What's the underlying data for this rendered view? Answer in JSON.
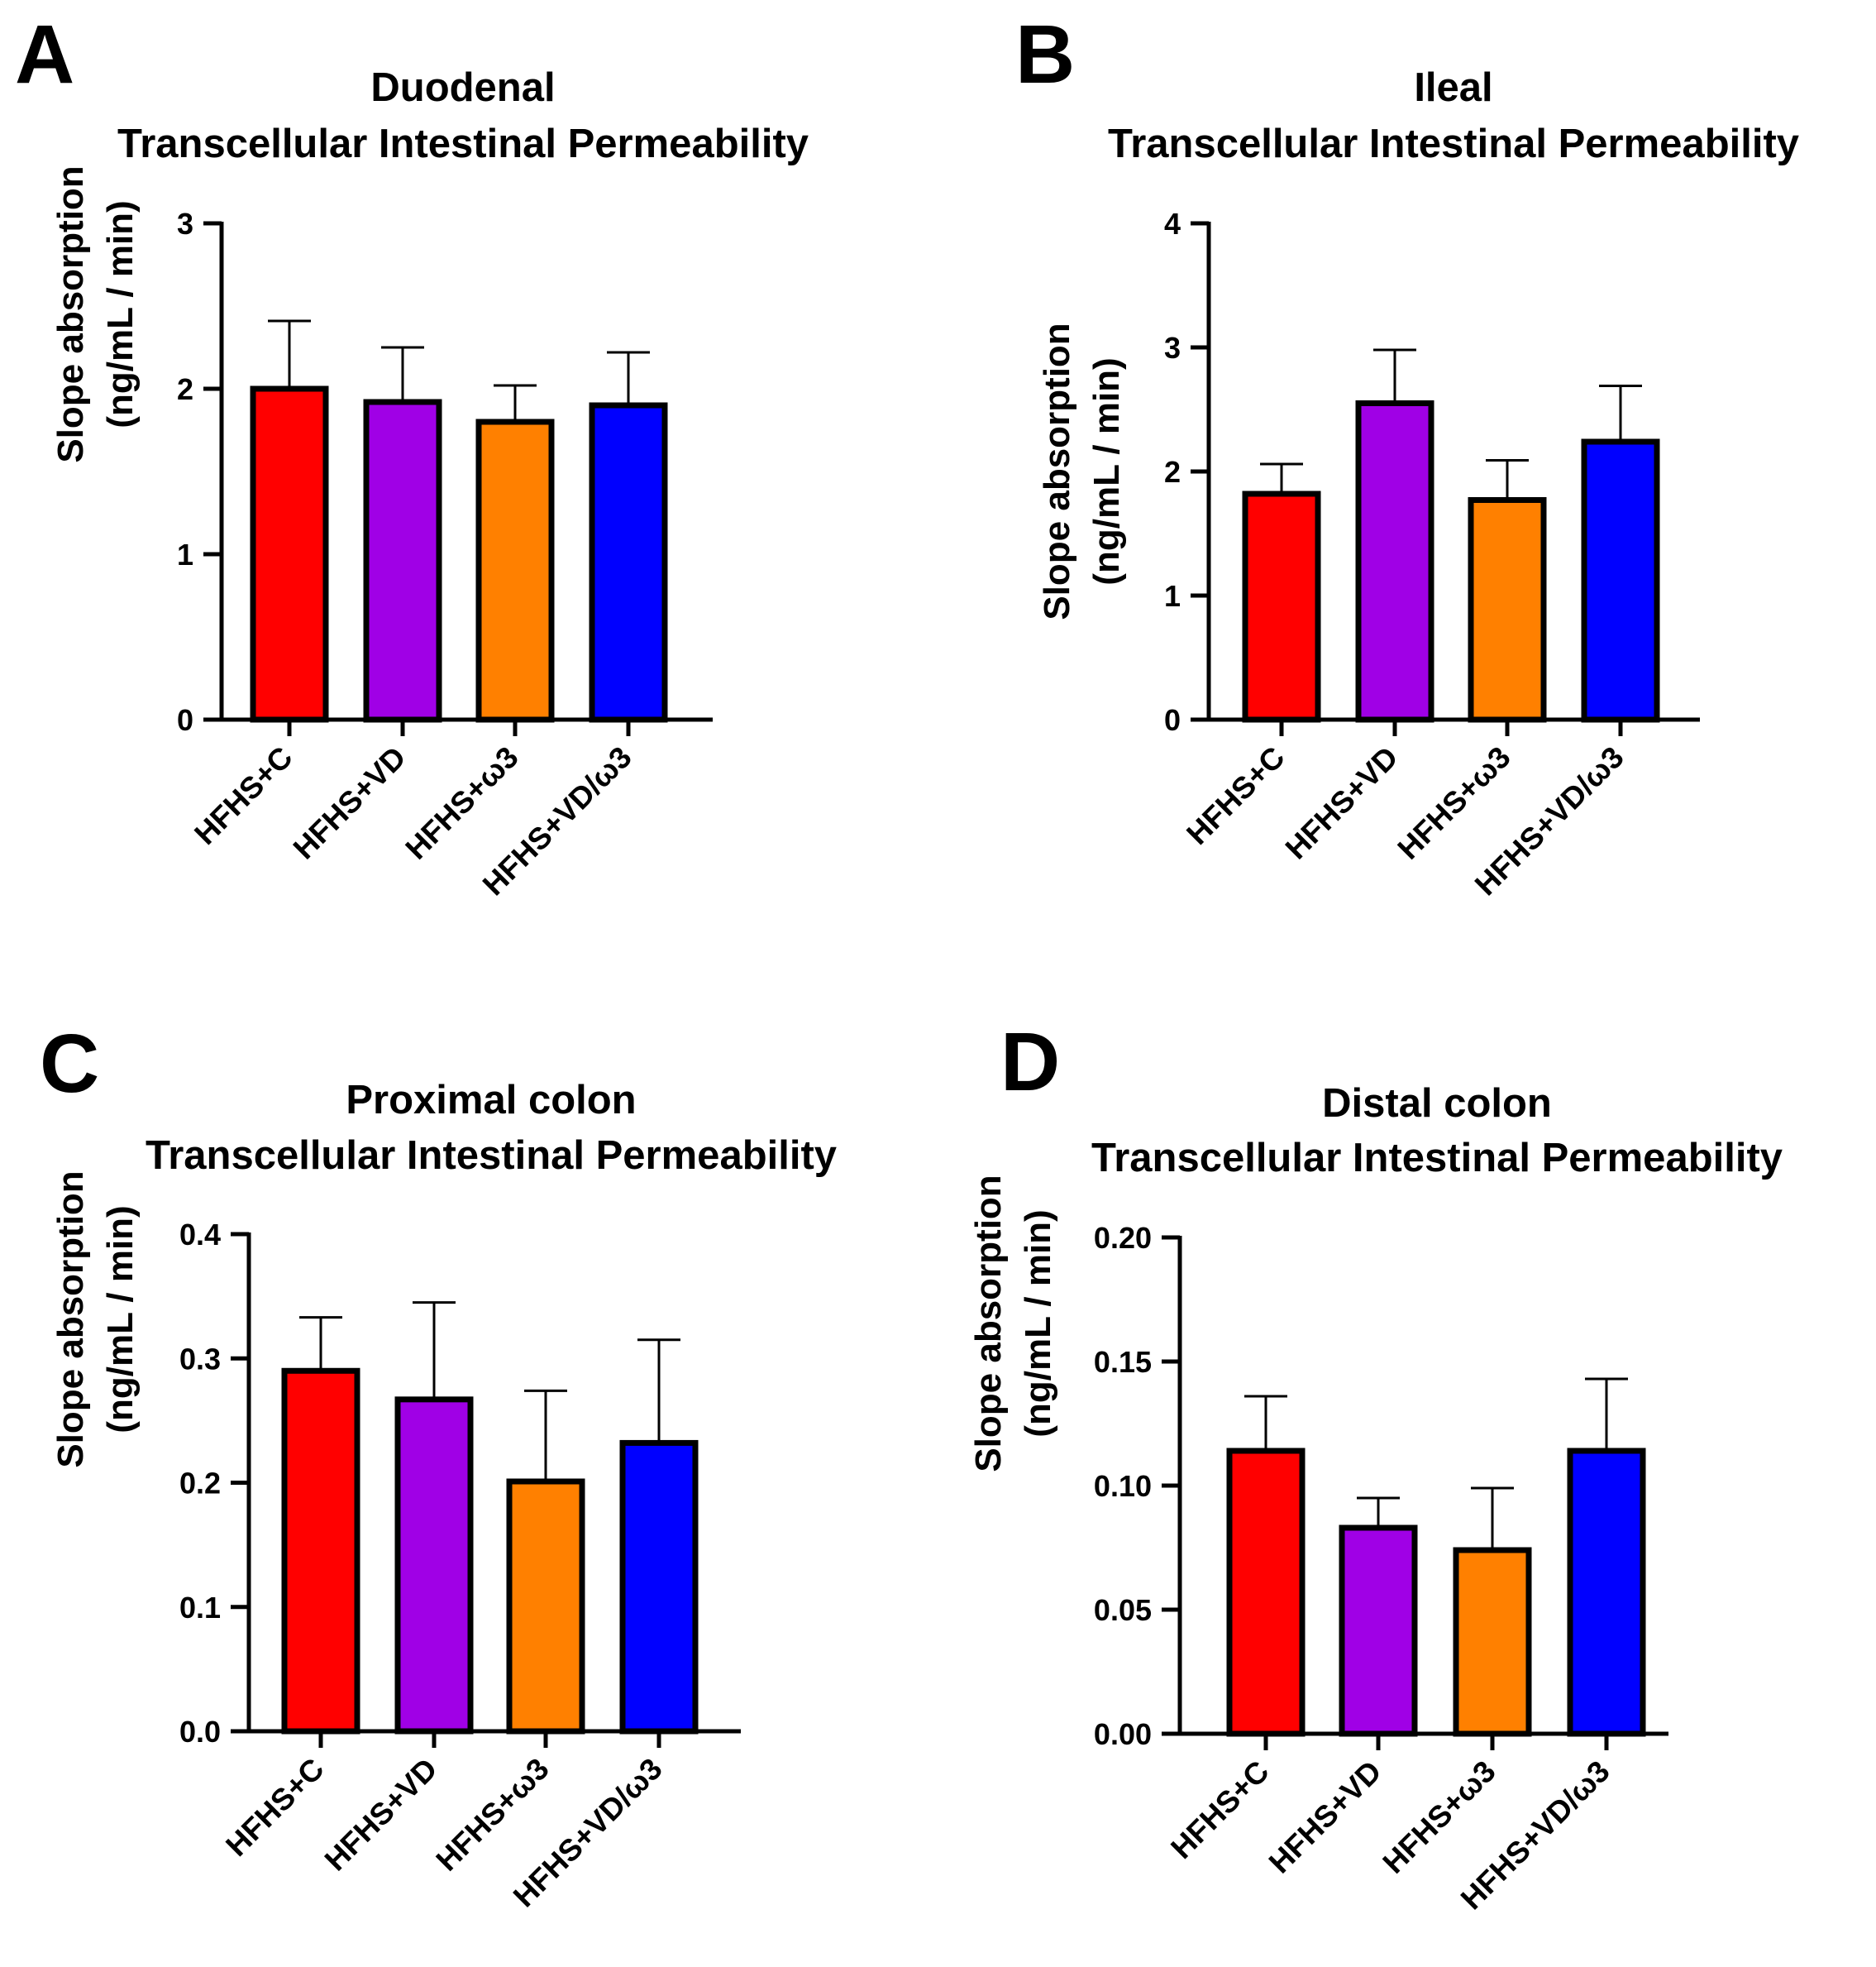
{
  "chart_data": [
    {
      "panel": "A",
      "type": "bar",
      "title": "Duodenal",
      "subtitle": "Transcellular Intestinal Permeability",
      "ylabel": "Slope absorption",
      "ylabel2": "(ng/mL / min)",
      "categories": [
        "HFHS+C",
        "HFHS+VD",
        "HFHS+ω3",
        "HFHS+VD/ω3"
      ],
      "values": [
        2.0,
        1.92,
        1.8,
        1.9
      ],
      "errors": [
        0.41,
        0.33,
        0.22,
        0.32
      ],
      "colors": [
        "#ff0000",
        "#a000e6",
        "#ff8000",
        "#0000ff"
      ],
      "ylim": [
        0,
        3
      ],
      "yticks": [
        0,
        1,
        2,
        3
      ],
      "ytick_labels": [
        "0",
        "1",
        "2",
        "3"
      ]
    },
    {
      "panel": "B",
      "type": "bar",
      "title": "Ileal",
      "subtitle": "Transcellular Intestinal Permeability",
      "ylabel": "Slope absorption",
      "ylabel2": "(ng/mL / min)",
      "categories": [
        "HFHS+C",
        "HFHS+VD",
        "HFHS+ω3",
        "HFHS+VD/ω3"
      ],
      "values": [
        1.82,
        2.55,
        1.77,
        2.24
      ],
      "errors": [
        0.24,
        0.43,
        0.32,
        0.45
      ],
      "colors": [
        "#ff0000",
        "#a000e6",
        "#ff8000",
        "#0000ff"
      ],
      "ylim": [
        0,
        4
      ],
      "yticks": [
        0,
        1,
        2,
        3,
        4
      ],
      "ytick_labels": [
        "0",
        "1",
        "2",
        "3",
        "4"
      ]
    },
    {
      "panel": "C",
      "type": "bar",
      "title": "Proximal colon",
      "subtitle": "Transcellular Intestinal Permeability",
      "ylabel": "Slope absorption",
      "ylabel2": "(ng/mL / min)",
      "categories": [
        "HFHS+C",
        "HFHS+VD",
        "HFHS+ω3",
        "HFHS+VD/ω3"
      ],
      "values": [
        0.29,
        0.267,
        0.201,
        0.232
      ],
      "errors": [
        0.043,
        0.078,
        0.073,
        0.083
      ],
      "colors": [
        "#ff0000",
        "#a000e6",
        "#ff8000",
        "#0000ff"
      ],
      "ylim": [
        0,
        0.4
      ],
      "yticks": [
        0,
        0.1,
        0.2,
        0.3,
        0.4
      ],
      "ytick_labels": [
        "0.0",
        "0.1",
        "0.2",
        "0.3",
        "0.4"
      ]
    },
    {
      "panel": "D",
      "type": "bar",
      "title": "Distal colon",
      "subtitle": "Transcellular Intestinal Permeability",
      "ylabel": "Slope absorption",
      "ylabel2": "(ng/mL / min)",
      "categories": [
        "HFHS+C",
        "HFHS+VD",
        "HFHS+ω3",
        "HFHS+VD/ω3"
      ],
      "values": [
        0.114,
        0.083,
        0.074,
        0.114
      ],
      "errors": [
        0.022,
        0.012,
        0.025,
        0.029
      ],
      "colors": [
        "#ff0000",
        "#a000e6",
        "#ff8000",
        "#0000ff"
      ],
      "ylim": [
        0,
        0.2
      ],
      "yticks": [
        0,
        0.05,
        0.1,
        0.15,
        0.2
      ],
      "ytick_labels": [
        "0.00",
        "0.05",
        "0.10",
        "0.15",
        "0.20"
      ]
    }
  ]
}
